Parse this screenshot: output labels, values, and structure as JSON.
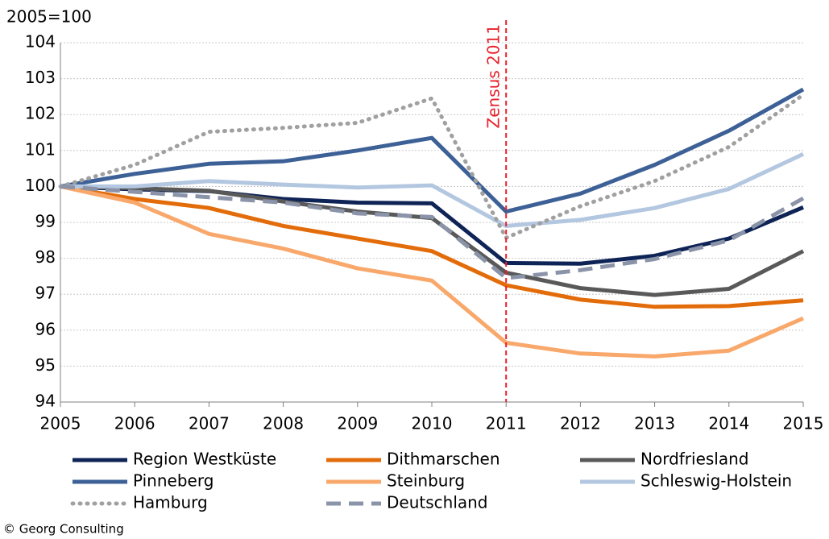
{
  "chart_data": {
    "type": "line",
    "y_axis_label": "2005=100",
    "source": "© Georg Consulting",
    "x": [
      2005,
      2006,
      2007,
      2008,
      2009,
      2010,
      2011,
      2012,
      2013,
      2014,
      2015
    ],
    "xlim": [
      2005,
      2015
    ],
    "xticks": [
      2005,
      2006,
      2007,
      2008,
      2009,
      2010,
      2011,
      2012,
      2013,
      2014,
      2015
    ],
    "ylim": [
      94,
      104
    ],
    "yticks": [
      94,
      95,
      96,
      97,
      98,
      99,
      100,
      101,
      102,
      103,
      104
    ],
    "grid": true,
    "legend": "bottom",
    "annotations": [
      {
        "text": "Zensus 2011",
        "x": 2011,
        "color": "#e8202a"
      }
    ],
    "series": [
      {
        "name": "Region Westküste",
        "color": "#0f2456",
        "dash": "solid",
        "values": [
          100,
          99.92,
          99.87,
          99.65,
          99.55,
          99.53,
          97.87,
          97.85,
          98.07,
          98.55,
          99.42
        ]
      },
      {
        "name": "Dithmarschen",
        "color": "#e36c0a",
        "dash": "solid",
        "values": [
          100,
          99.65,
          99.4,
          98.9,
          98.55,
          98.2,
          97.25,
          96.85,
          96.65,
          96.67,
          96.83
        ]
      },
      {
        "name": "Nordfriesland",
        "color": "#595959",
        "dash": "solid",
        "values": [
          100,
          99.95,
          99.88,
          99.58,
          99.3,
          99.12,
          97.6,
          97.17,
          96.98,
          97.15,
          98.2
        ]
      },
      {
        "name": "Pinneberg",
        "color": "#3d6196",
        "dash": "solid",
        "values": [
          100,
          100.35,
          100.63,
          100.7,
          101.0,
          101.35,
          99.3,
          99.8,
          100.6,
          101.55,
          102.7
        ]
      },
      {
        "name": "Steinburg",
        "color": "#f9a86c",
        "dash": "solid",
        "values": [
          100,
          99.55,
          98.68,
          98.27,
          97.72,
          97.38,
          95.65,
          95.35,
          95.27,
          95.43,
          96.33
        ]
      },
      {
        "name": "Schleswig-Holstein",
        "color": "#b3c7e0",
        "dash": "solid",
        "values": [
          100,
          100.0,
          100.15,
          100.05,
          99.97,
          100.03,
          98.9,
          99.07,
          99.4,
          99.93,
          100.9
        ]
      },
      {
        "name": "Hamburg",
        "color": "#a0a0a0",
        "dash": "dotted",
        "values": [
          100,
          100.6,
          101.52,
          101.63,
          101.77,
          102.45,
          98.57,
          99.45,
          100.15,
          101.1,
          102.55
        ]
      },
      {
        "name": "Deutschland",
        "color": "#8a93a8",
        "dash": "dashed",
        "values": [
          100,
          99.85,
          99.7,
          99.55,
          99.25,
          99.15,
          97.45,
          97.67,
          97.98,
          98.5,
          99.67
        ]
      }
    ]
  }
}
